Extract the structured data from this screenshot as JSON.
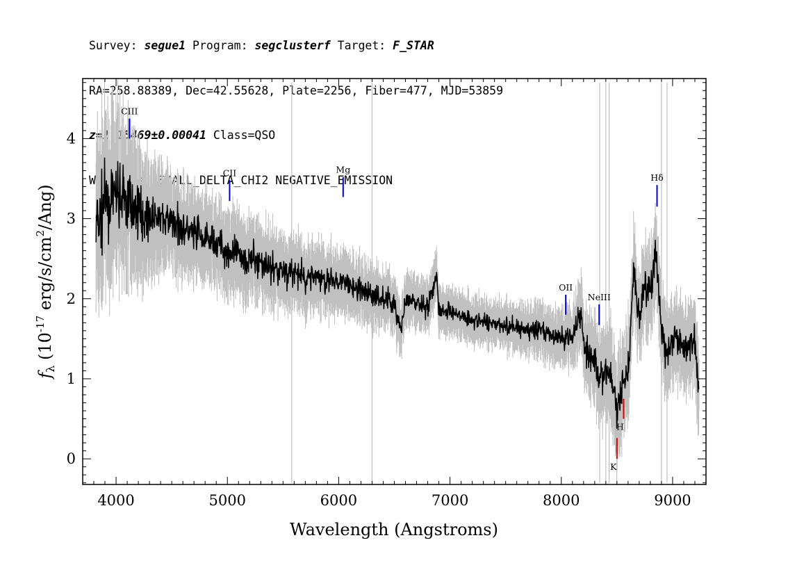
{
  "header": {
    "survey_label": "Survey:",
    "survey": "segue1",
    "program_label": "Program:",
    "program": "segclusterf",
    "target_label": "Target:",
    "target": "F_STAR",
    "coords": "RA=258.88389, Dec=42.55628, Plate=2256, Fiber=477, MJD=53859",
    "redshift": "z=1.15469±0.00041",
    "class": "Class=QSO",
    "warnings": "Warnings: SMALL_DELTA_CHI2 NEGATIVE_EMISSION"
  },
  "colors": {
    "flux": "#000000",
    "error": "#c0c0c0",
    "emission_marker": "#0000cc",
    "absorption_marker": "#dd0000"
  },
  "chart_data": {
    "type": "line",
    "xlabel": "Wavelength (Angstroms)",
    "ylabel": "f_λ (10^-17 erg/s/cm²/Ang)",
    "xlim": [
      3700,
      9300
    ],
    "ylim": [
      -0.32,
      4.75
    ],
    "xticks": [
      4000,
      5000,
      6000,
      7000,
      8000,
      9000
    ],
    "yticks": [
      0,
      1,
      2,
      3,
      4
    ],
    "grid": false,
    "series": [
      {
        "role": "flux",
        "x": [
          3820,
          3900,
          4000,
          4100,
          4200,
          4300,
          4400,
          4500,
          4600,
          4700,
          4800,
          4900,
          5000,
          5100,
          5200,
          5300,
          5400,
          5500,
          5600,
          5700,
          5800,
          5900,
          6000,
          6100,
          6200,
          6300,
          6400,
          6500,
          6560,
          6600,
          6700,
          6800,
          6880,
          6900,
          7000,
          7100,
          7200,
          7300,
          7400,
          7500,
          7600,
          7700,
          7800,
          7900,
          8000,
          8100,
          8180,
          8200,
          8300,
          8350,
          8400,
          8450,
          8500,
          8550,
          8600,
          8650,
          8700,
          8750,
          8800,
          8850,
          8900,
          8950,
          9000,
          9100,
          9200,
          9240
        ],
        "y": [
          2.9,
          3.2,
          3.3,
          3.2,
          3.1,
          3.0,
          3.0,
          2.95,
          2.9,
          2.8,
          2.75,
          2.7,
          2.6,
          2.55,
          2.5,
          2.45,
          2.4,
          2.35,
          2.3,
          2.25,
          2.3,
          2.2,
          2.25,
          2.15,
          2.1,
          2.05,
          2.0,
          1.95,
          1.6,
          1.95,
          1.95,
          1.9,
          2.3,
          1.85,
          1.85,
          1.8,
          1.75,
          1.7,
          1.7,
          1.65,
          1.65,
          1.6,
          1.6,
          1.55,
          1.5,
          1.55,
          1.85,
          1.45,
          1.2,
          1.0,
          1.1,
          1.0,
          0.6,
          0.9,
          1.1,
          2.3,
          1.7,
          2.2,
          2.1,
          2.6,
          1.6,
          1.3,
          1.5,
          1.4,
          1.5,
          0.8
        ]
      },
      {
        "role": "error envelope",
        "x": [
          3820,
          4000,
          4500,
          5000,
          5500,
          6000,
          6500,
          7000,
          7500,
          8000,
          8300,
          8500,
          8700,
          9000,
          9240
        ],
        "half_width": [
          0.9,
          0.9,
          0.5,
          0.45,
          0.4,
          0.35,
          0.3,
          0.25,
          0.25,
          0.3,
          0.45,
          0.55,
          0.5,
          0.45,
          0.45
        ]
      }
    ],
    "annotations": [
      {
        "label": "CIII",
        "x": 4120,
        "y_top": 4.25,
        "y_bottom": 4.0,
        "kind": "emission"
      },
      {
        "label": "CII",
        "x": 5020,
        "y_top": 3.48,
        "y_bottom": 3.22,
        "kind": "emission"
      },
      {
        "label": "Mg",
        "x": 6040,
        "y_top": 3.52,
        "y_bottom": 3.27,
        "kind": "emission"
      },
      {
        "label": "OII",
        "x": 8040,
        "y_top": 2.05,
        "y_bottom": 1.8,
        "kind": "emission"
      },
      {
        "label": "NeIII",
        "x": 8340,
        "y_top": 1.93,
        "y_bottom": 1.67,
        "kind": "emission"
      },
      {
        "label": "Hδ",
        "x": 8860,
        "y_top": 3.42,
        "y_bottom": 3.15,
        "kind": "emission"
      },
      {
        "label": "K",
        "x": 8500,
        "y_top": 0.26,
        "y_bottom": 0.0,
        "kind": "absorption"
      },
      {
        "label": "H",
        "x": 8560,
        "y_top": 0.75,
        "y_bottom": 0.5,
        "kind": "absorption"
      }
    ]
  }
}
